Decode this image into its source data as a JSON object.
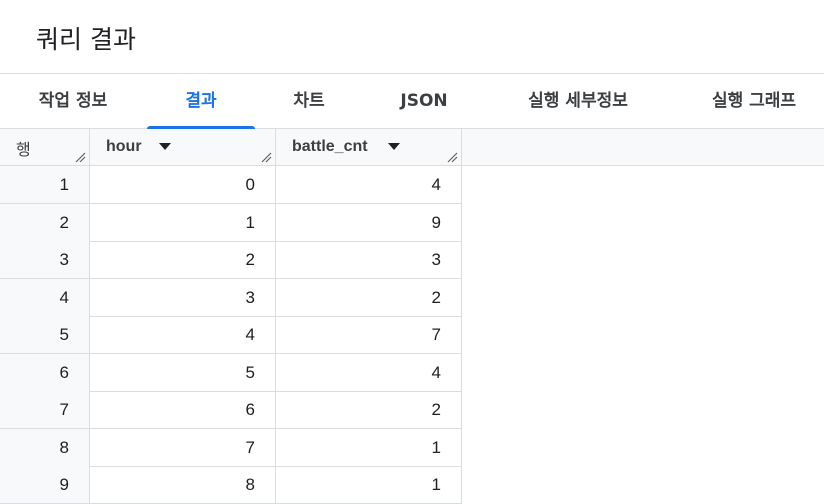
{
  "header": {
    "title": "쿼리 결과"
  },
  "tabs": [
    {
      "label": "작업 정보",
      "active": false
    },
    {
      "label": "결과",
      "active": true
    },
    {
      "label": "차트",
      "active": false
    },
    {
      "label": "JSON",
      "active": false
    },
    {
      "label": "실행 세부정보",
      "active": false
    },
    {
      "label": "실행 그래프",
      "active": false
    }
  ],
  "table": {
    "columns": [
      {
        "label": "행",
        "sortable": false
      },
      {
        "label": "hour",
        "sortable": true
      },
      {
        "label": "battle_cnt",
        "sortable": true
      }
    ],
    "rows": [
      {
        "row": "1",
        "hour": "0",
        "battle_cnt": "4"
      },
      {
        "row": "2",
        "hour": "1",
        "battle_cnt": "9"
      },
      {
        "row": "3",
        "hour": "2",
        "battle_cnt": "3"
      },
      {
        "row": "4",
        "hour": "3",
        "battle_cnt": "2"
      },
      {
        "row": "5",
        "hour": "4",
        "battle_cnt": "7"
      },
      {
        "row": "6",
        "hour": "5",
        "battle_cnt": "4"
      },
      {
        "row": "7",
        "hour": "6",
        "battle_cnt": "2"
      },
      {
        "row": "8",
        "hour": "7",
        "battle_cnt": "1"
      },
      {
        "row": "9",
        "hour": "8",
        "battle_cnt": "1"
      }
    ]
  },
  "colors": {
    "accent": "#1a73e8",
    "border": "#dadce0",
    "header_bg": "#f8f9fa",
    "text": "#202124"
  },
  "icons": {
    "sort": "sort-descending-icon",
    "resize": "column-resize-icon"
  }
}
